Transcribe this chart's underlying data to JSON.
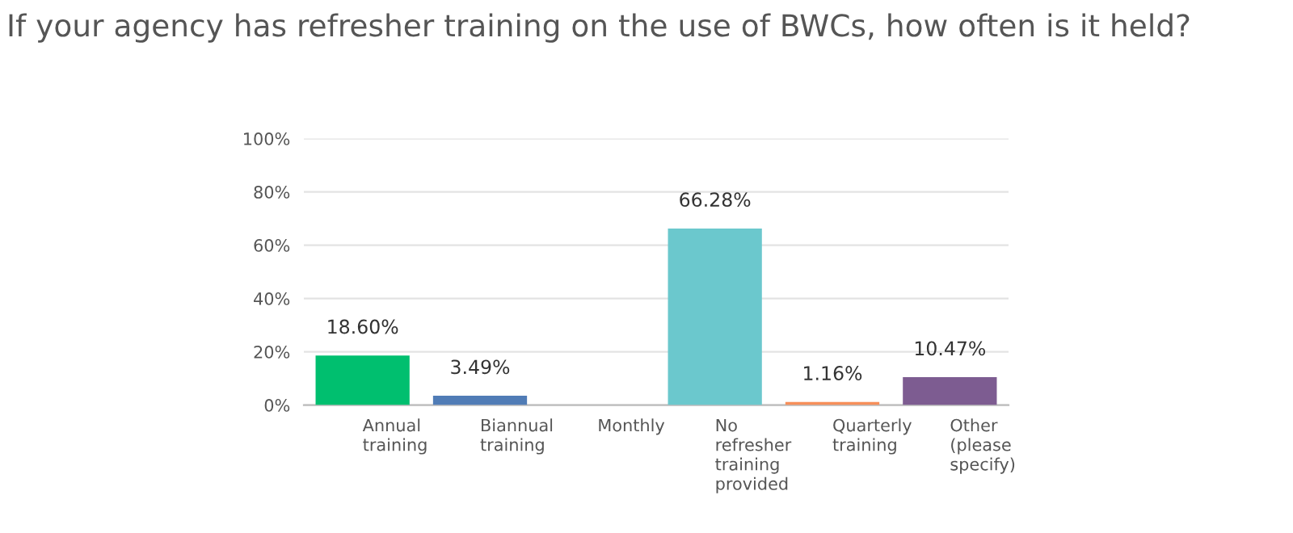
{
  "chart_data": {
    "type": "bar",
    "title": "If your agency has refresher training on the use of BWCs, how often is it held?",
    "categories": [
      "Annual training",
      "Biannual training",
      "Monthly",
      "No refresher training provided",
      "Quarterly training",
      "Other (please specify)"
    ],
    "values": [
      18.6,
      3.49,
      0,
      66.28,
      1.16,
      10.47
    ],
    "colors": [
      "#00bf6f",
      "#507cb6",
      "#f05b24",
      "#6bc8cd",
      "#f78f5a",
      "#7d5c91"
    ],
    "value_labels": [
      "18.60%",
      "3.49%",
      null,
      "66.28%",
      "1.16%",
      "10.47%"
    ],
    "ylim": [
      0,
      100
    ],
    "yticks": [
      {
        "value": 0,
        "label": "0%"
      },
      {
        "value": 20,
        "label": "20%"
      },
      {
        "value": 40,
        "label": "40%"
      },
      {
        "value": 60,
        "label": "60%"
      },
      {
        "value": 80,
        "label": "80%"
      },
      {
        "value": 100,
        "label": "100%"
      }
    ],
    "grid": "y"
  }
}
